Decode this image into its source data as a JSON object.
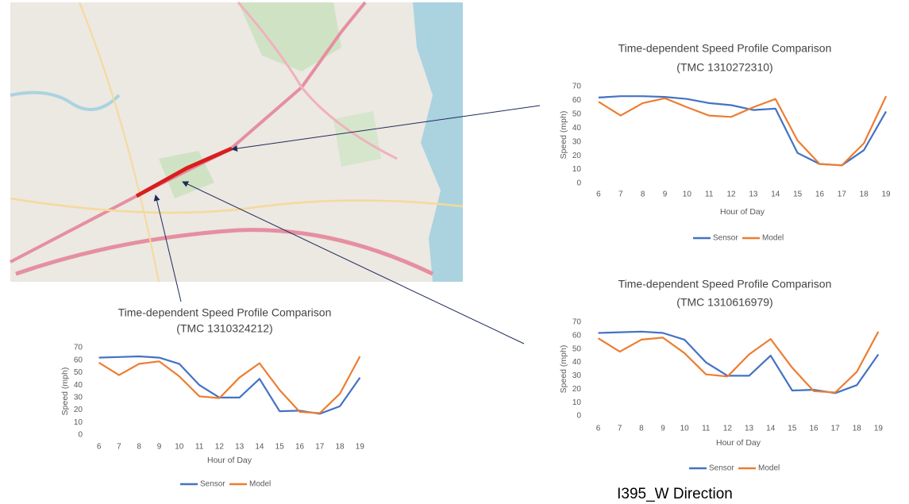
{
  "chart_data": [
    {
      "type": "line",
      "title": "Time-dependent Speed Profile Comparison",
      "subtitle": "(TMC 1310272310)",
      "x_label": "Hour of Day",
      "y_label": "Speed (mph)",
      "categories": [
        6,
        7,
        8,
        9,
        10,
        11,
        12,
        13,
        14,
        15,
        16,
        17,
        18,
        19
      ],
      "series": [
        {
          "name": "Sensor",
          "color": "#4472c4",
          "values": [
            62,
            63,
            63,
            62.5,
            61,
            58,
            56.5,
            53,
            54,
            22,
            14,
            13,
            24,
            52
          ]
        },
        {
          "name": "Model",
          "color": "#ed7d31",
          "values": [
            59,
            49,
            58,
            61.5,
            55,
            49,
            48,
            55,
            61,
            31,
            14,
            13,
            29,
            63
          ]
        }
      ],
      "ylim": [
        0,
        70
      ],
      "yticks": [
        0,
        10,
        20,
        30,
        40,
        50,
        60,
        70
      ],
      "grid": false,
      "legend": "bottom"
    },
    {
      "type": "line",
      "title": "Time-dependent Speed Profile Comparison",
      "subtitle": "(TMC 1310616979)",
      "x_label": "Hour of Day",
      "y_label": "Speed (mph)",
      "categories": [
        6,
        7,
        8,
        9,
        10,
        11,
        12,
        13,
        14,
        15,
        16,
        17,
        18,
        19
      ],
      "series": [
        {
          "name": "Sensor",
          "color": "#4472c4",
          "values": [
            62,
            62.5,
            63,
            62,
            57,
            40,
            30,
            30,
            45,
            19,
            19.5,
            17,
            23,
            46
          ]
        },
        {
          "name": "Model",
          "color": "#ed7d31",
          "values": [
            58,
            48,
            57,
            58.5,
            47,
            31,
            29.5,
            46,
            57.5,
            36,
            18.5,
            17.5,
            33,
            63
          ]
        }
      ],
      "ylim": [
        0,
        70
      ],
      "yticks": [
        0,
        10,
        20,
        30,
        40,
        50,
        60,
        70
      ],
      "grid": false,
      "legend": "bottom"
    },
    {
      "type": "line",
      "title": "Time-dependent Speed Profile Comparison",
      "subtitle": "(TMC 1310324212)",
      "x_label": "Hour of Day",
      "y_label": "Speed (mph)",
      "categories": [
        6,
        7,
        8,
        9,
        10,
        11,
        12,
        13,
        14,
        15,
        16,
        17,
        18,
        19
      ],
      "series": [
        {
          "name": "Sensor",
          "color": "#4472c4",
          "values": [
            62,
            62.5,
            63,
            62,
            57,
            40,
            30,
            30,
            45,
            19,
            19.5,
            17,
            23,
            46
          ]
        },
        {
          "name": "Model",
          "color": "#ed7d31",
          "values": [
            58,
            48,
            57,
            59,
            47,
            31,
            29.5,
            46,
            57.5,
            36,
            18.5,
            17.5,
            33,
            63
          ]
        }
      ],
      "ylim": [
        0,
        70
      ],
      "yticks": [
        0,
        10,
        20,
        30,
        40,
        50,
        60,
        70
      ],
      "grid": false,
      "legend": "bottom"
    }
  ],
  "caption": "I395_W Direction"
}
